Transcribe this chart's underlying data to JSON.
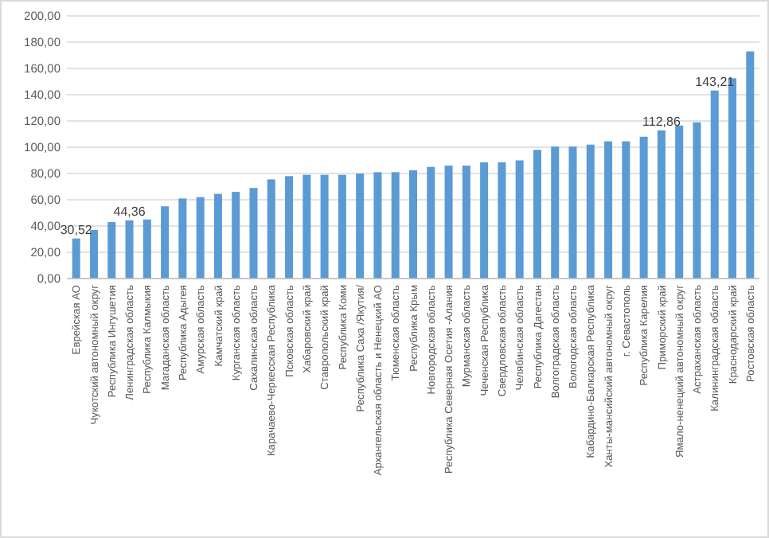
{
  "chart_data": {
    "type": "bar",
    "categories": [
      "Еврейская АО",
      "Чукотский автономный округ",
      "Республика Ингушетия",
      "Ленинградская область",
      "Республика Калмыкия",
      "Магаданская область",
      "Республика Адыгея",
      "Амурская область",
      "Камчатский край",
      "Курганская область",
      "Сахалинская область",
      "Карачаево-Черкесская Республика",
      "Псковская область",
      "Хабаровский край",
      "Ставропольский край",
      "Республика Коми",
      "Республика Саха /Якутия/",
      "Архангельская область и Ненецкий АО",
      "Тюменская область",
      "Республика Крым",
      "Новгородская область",
      "Республика Северная Осетия -Алания",
      "Мурманская область",
      "Чеченская Республика",
      "Свердловская область",
      "Челябинская область",
      "Республика Дагестан",
      "Волгоградская область",
      "Вологодская область",
      "Кабардино-Балкарская Республика",
      "Ханты-мансийский автономный округ",
      "г. Севастополь",
      "Республика Карелия",
      "Приморский край",
      "Ямало-ненецкий автономный округ",
      "Астраханская область",
      "Калининградская область",
      "Краснодарский край",
      "Ростовская область"
    ],
    "values": [
      30.52,
      37,
      43,
      44.36,
      45,
      55,
      61,
      62,
      64.5,
      66,
      69,
      75.5,
      78,
      79,
      79,
      79,
      80,
      81,
      81,
      82.5,
      85,
      86,
      86,
      88.5,
      88.5,
      90,
      98,
      100.5,
      100.5,
      102,
      104.5,
      104.5,
      108,
      112.86,
      116.5,
      119,
      143.21,
      152.5,
      173
    ],
    "value_labels": [
      "30,52",
      null,
      null,
      "44,36",
      null,
      null,
      null,
      null,
      null,
      null,
      null,
      null,
      null,
      null,
      null,
      null,
      null,
      null,
      null,
      null,
      null,
      null,
      null,
      null,
      null,
      null,
      null,
      null,
      null,
      null,
      null,
      null,
      null,
      "112,86",
      null,
      null,
      "143,21",
      null,
      null
    ],
    "color": "#5b9bd5",
    "ylim": [
      0,
      200
    ],
    "yticks": [
      {
        "value": 0,
        "label": "0,00"
      },
      {
        "value": 20,
        "label": "20,00"
      },
      {
        "value": 40,
        "label": "40,00"
      },
      {
        "value": 60,
        "label": "60,00"
      },
      {
        "value": 80,
        "label": "80,00"
      },
      {
        "value": 100,
        "label": "100,00"
      },
      {
        "value": 120,
        "label": "120,00"
      },
      {
        "value": 140,
        "label": "140,00"
      },
      {
        "value": 160,
        "label": "160,00"
      },
      {
        "value": 180,
        "label": "180,00"
      },
      {
        "value": 200,
        "label": "200,00"
      }
    ],
    "grid": "y"
  }
}
